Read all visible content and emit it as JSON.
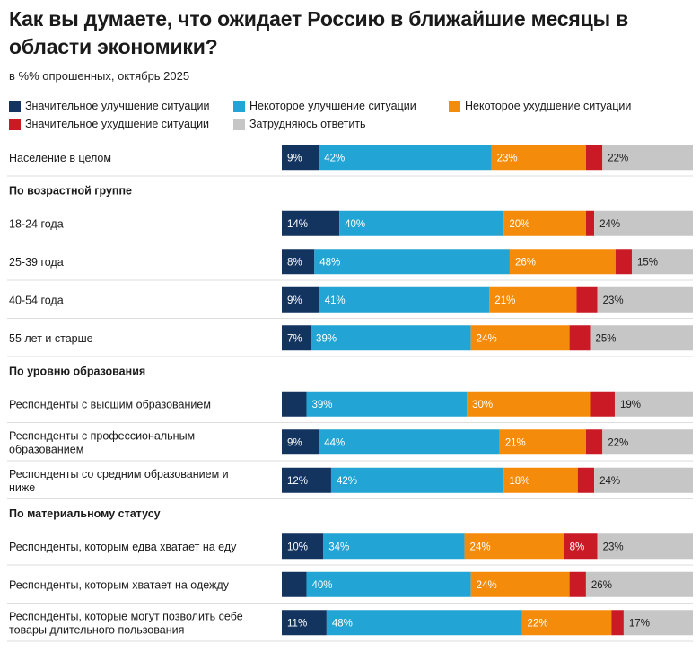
{
  "chart_data": {
    "type": "bar",
    "orientation": "horizontal",
    "stacked": true,
    "title": "Как вы думаете, что ожидает Россию в ближайшие месяцы в области экономики?",
    "subtitle": "в %% опрошенных, октябрь 2025",
    "series": [
      {
        "name": "Значительное улучшение ситуации",
        "color": "#12345e"
      },
      {
        "name": "Некоторое улучшение ситуации",
        "color": "#22a4d4"
      },
      {
        "name": "Некоторое ухудшение ситуации",
        "color": "#f58b0a"
      },
      {
        "name": "Значительное ухудшение ситуации",
        "color": "#c91a26"
      },
      {
        "name": "Затрудняюсь ответить",
        "color": "#c6c6c6"
      }
    ],
    "rows": [
      {
        "kind": "item",
        "label": [
          "Население в целом"
        ],
        "values": [
          9,
          42,
          23,
          4,
          22
        ],
        "labels": [
          "9%",
          "42%",
          "23%",
          "",
          "22%"
        ]
      },
      {
        "kind": "group",
        "label": "По возрастной группе"
      },
      {
        "kind": "item",
        "label": [
          "18-24 года"
        ],
        "values": [
          14,
          40,
          20,
          2,
          24
        ],
        "labels": [
          "14%",
          "40%",
          "20%",
          "",
          "24%"
        ]
      },
      {
        "kind": "item",
        "label": [
          "25-39 года"
        ],
        "values": [
          8,
          48,
          26,
          4,
          15
        ],
        "labels": [
          "8%",
          "48%",
          "26%",
          "",
          "15%"
        ]
      },
      {
        "kind": "item",
        "label": [
          "40-54 года"
        ],
        "values": [
          9,
          41,
          21,
          5,
          23
        ],
        "labels": [
          "9%",
          "41%",
          "21%",
          "",
          "23%"
        ]
      },
      {
        "kind": "item",
        "label": [
          "55 лет и старше"
        ],
        "values": [
          7,
          39,
          24,
          5,
          25
        ],
        "labels": [
          "7%",
          "39%",
          "24%",
          "",
          "25%"
        ]
      },
      {
        "kind": "group",
        "label": "По уровню образования"
      },
      {
        "kind": "item",
        "label": [
          "Респонденты с высшим образованием"
        ],
        "values": [
          6,
          39,
          30,
          6,
          19
        ],
        "labels": [
          "",
          "39%",
          "30%",
          "",
          "19%"
        ]
      },
      {
        "kind": "item",
        "label": [
          "Респонденты с профессиональным",
          "образованием"
        ],
        "values": [
          9,
          44,
          21,
          4,
          22
        ],
        "labels": [
          "9%",
          "44%",
          "21%",
          "",
          "22%"
        ]
      },
      {
        "kind": "item",
        "label": [
          "Респонденты со средним образованием и",
          "ниже"
        ],
        "values": [
          12,
          42,
          18,
          4,
          24
        ],
        "labels": [
          "12%",
          "42%",
          "18%",
          "",
          "24%"
        ]
      },
      {
        "kind": "group",
        "label": "По материальному статусу"
      },
      {
        "kind": "item",
        "label": [
          "Респонденты, которым едва хватает на еду"
        ],
        "values": [
          10,
          34,
          24,
          8,
          23
        ],
        "labels": [
          "10%",
          "34%",
          "24%",
          "8%",
          "23%"
        ]
      },
      {
        "kind": "item",
        "label": [
          "Респонденты, которым хватает на одежду"
        ],
        "values": [
          6,
          40,
          24,
          4,
          26
        ],
        "labels": [
          "",
          "40%",
          "24%",
          "",
          "26%"
        ]
      },
      {
        "kind": "item",
        "label": [
          "Респонденты, которые могут позволить себе",
          "товары длительного пользования"
        ],
        "values": [
          11,
          48,
          22,
          3,
          17
        ],
        "labels": [
          "11%",
          "48%",
          "22%",
          "",
          "17%"
        ]
      }
    ]
  }
}
